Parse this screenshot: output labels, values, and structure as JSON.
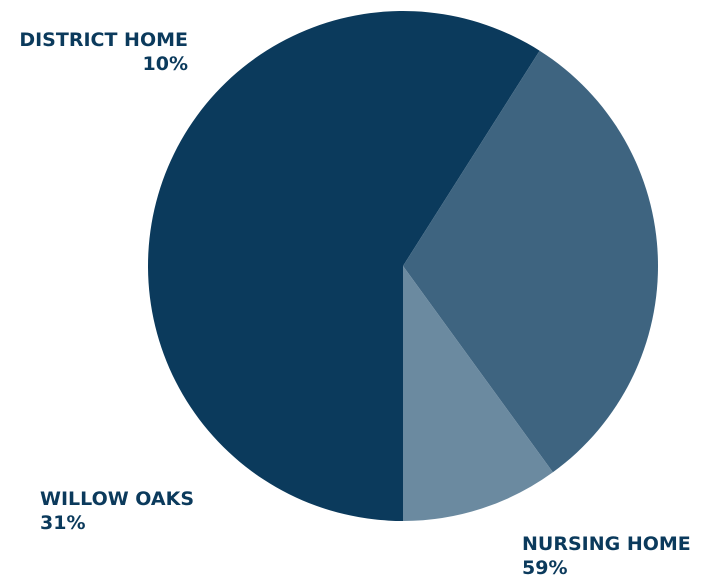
{
  "chart_data": {
    "type": "pie",
    "title": "",
    "slices": [
      {
        "label": "NURSING HOME",
        "value": 59,
        "value_label": "59%",
        "color": "#0b3a5c"
      },
      {
        "label": "WILLOW OAKS",
        "value": 31,
        "value_label": "31%",
        "color": "#3e6480"
      },
      {
        "label": "DISTRICT HOME",
        "value": 10,
        "value_label": "10%",
        "color": "#6b8aa0"
      }
    ],
    "legend": "none"
  }
}
